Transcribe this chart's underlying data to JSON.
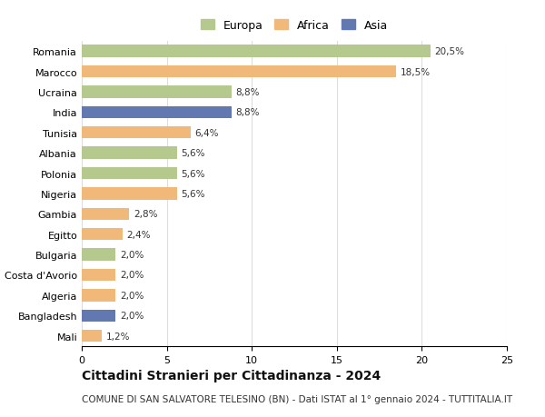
{
  "categories": [
    "Romania",
    "Marocco",
    "Ucraina",
    "India",
    "Tunisia",
    "Albania",
    "Polonia",
    "Nigeria",
    "Gambia",
    "Egitto",
    "Bulgaria",
    "Costa d'Avorio",
    "Algeria",
    "Bangladesh",
    "Mali"
  ],
  "values": [
    20.5,
    18.5,
    8.8,
    8.8,
    6.4,
    5.6,
    5.6,
    5.6,
    2.8,
    2.4,
    2.0,
    2.0,
    2.0,
    2.0,
    1.2
  ],
  "labels": [
    "20,5%",
    "18,5%",
    "8,8%",
    "8,8%",
    "6,4%",
    "5,6%",
    "5,6%",
    "5,6%",
    "2,8%",
    "2,4%",
    "2,0%",
    "2,0%",
    "2,0%",
    "2,0%",
    "1,2%"
  ],
  "continents": [
    "Europa",
    "Africa",
    "Europa",
    "Asia",
    "Africa",
    "Europa",
    "Europa",
    "Africa",
    "Africa",
    "Africa",
    "Europa",
    "Africa",
    "Africa",
    "Asia",
    "Africa"
  ],
  "colors": {
    "Europa": "#b5c98e",
    "Africa": "#f0b97a",
    "Asia": "#6278b0"
  },
  "legend_order": [
    "Europa",
    "Africa",
    "Asia"
  ],
  "title": "Cittadini Stranieri per Cittadinanza - 2024",
  "subtitle": "COMUNE DI SAN SALVATORE TELESINO (BN) - Dati ISTAT al 1° gennaio 2024 - TUTTITALIA.IT",
  "xlim": [
    0,
    25
  ],
  "xticks": [
    0,
    5,
    10,
    15,
    20,
    25
  ],
  "background_color": "#ffffff",
  "grid_color": "#dddddd",
  "bar_height": 0.6,
  "title_fontsize": 10,
  "subtitle_fontsize": 7.5,
  "label_fontsize": 7.5,
  "tick_fontsize": 8,
  "legend_fontsize": 9
}
